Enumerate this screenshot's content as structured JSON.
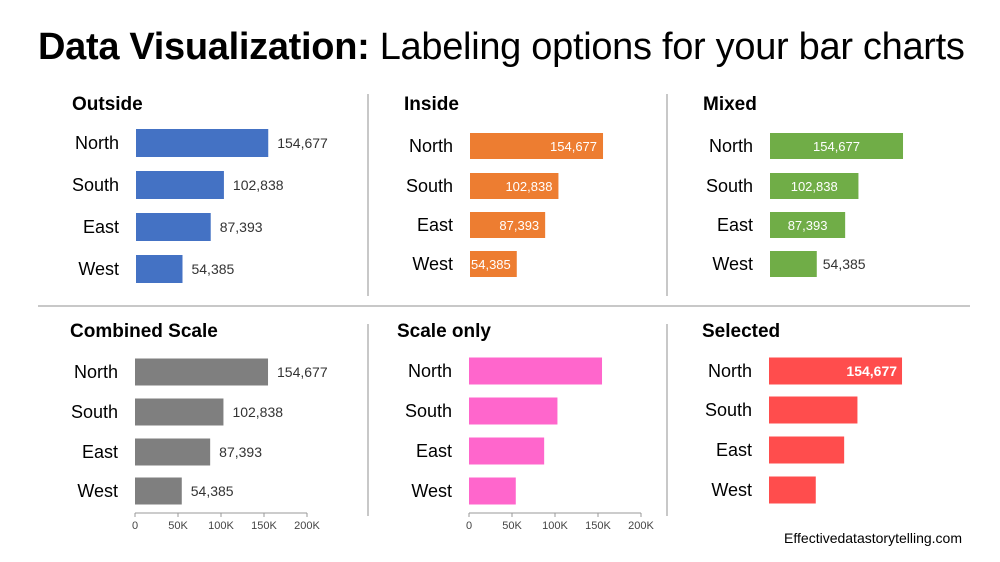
{
  "header": {
    "title_bold": "Data Visualization:",
    "title_rest": " Labeling options for your bar charts"
  },
  "footer": {
    "credit": "Effectivedatastorytelling.com"
  },
  "chart_data": [
    {
      "type": "bar",
      "orientation": "horizontal",
      "label_mode": "outside",
      "title": "Outside",
      "categories": [
        "North",
        "South",
        "East",
        "West"
      ],
      "values": [
        154677,
        102838,
        87393,
        54385
      ],
      "value_labels": [
        "154,677",
        "102,838",
        "87,393",
        "54,385"
      ],
      "color": "#4472C4",
      "xlim": [
        0,
        200000
      ]
    },
    {
      "type": "bar",
      "orientation": "horizontal",
      "label_mode": "inside",
      "title": "Inside",
      "categories": [
        "North",
        "South",
        "East",
        "West"
      ],
      "values": [
        154677,
        102838,
        87393,
        54385
      ],
      "value_labels": [
        "154,677",
        "102,838",
        "87,393",
        "54,385"
      ],
      "color": "#ED7D31",
      "xlim": [
        0,
        200000
      ]
    },
    {
      "type": "bar",
      "orientation": "horizontal",
      "label_mode": "mixed",
      "title": "Mixed",
      "categories": [
        "North",
        "South",
        "East",
        "West"
      ],
      "values": [
        154677,
        102838,
        87393,
        54385
      ],
      "value_labels": [
        "154,677",
        "102,838",
        "87,393",
        "54,385"
      ],
      "color": "#70AD47",
      "xlim": [
        0,
        200000
      ]
    },
    {
      "type": "bar",
      "orientation": "horizontal",
      "label_mode": "combined",
      "title": "Combined Scale",
      "categories": [
        "North",
        "South",
        "East",
        "West"
      ],
      "values": [
        154677,
        102838,
        87393,
        54385
      ],
      "value_labels": [
        "154,677",
        "102,838",
        "87,393",
        "54,385"
      ],
      "color": "#7F7F7F",
      "xlim": [
        0,
        200000
      ],
      "ticks": [
        0,
        50000,
        100000,
        150000,
        200000
      ],
      "tick_labels": [
        "0",
        "50K",
        "100K",
        "150K",
        "200K"
      ]
    },
    {
      "type": "bar",
      "orientation": "horizontal",
      "label_mode": "scale",
      "title": "Scale only",
      "categories": [
        "North",
        "South",
        "East",
        "West"
      ],
      "values": [
        154677,
        102838,
        87393,
        54385
      ],
      "color": "#FF66CC",
      "xlim": [
        0,
        200000
      ],
      "ticks": [
        0,
        50000,
        100000,
        150000,
        200000
      ],
      "tick_labels": [
        "0",
        "50K",
        "100K",
        "150K",
        "200K"
      ]
    },
    {
      "type": "bar",
      "orientation": "horizontal",
      "label_mode": "selected",
      "title": "Selected",
      "categories": [
        "North",
        "South",
        "East",
        "West"
      ],
      "values": [
        154677,
        102838,
        87393,
        54385
      ],
      "value_labels": [
        "154,677",
        "",
        "",
        ""
      ],
      "color": "#FF4D4D",
      "xlim": [
        0,
        200000
      ]
    }
  ]
}
